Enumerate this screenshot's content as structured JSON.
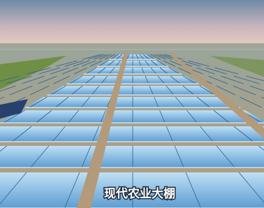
{
  "caption": "现代农业大棚"
}
